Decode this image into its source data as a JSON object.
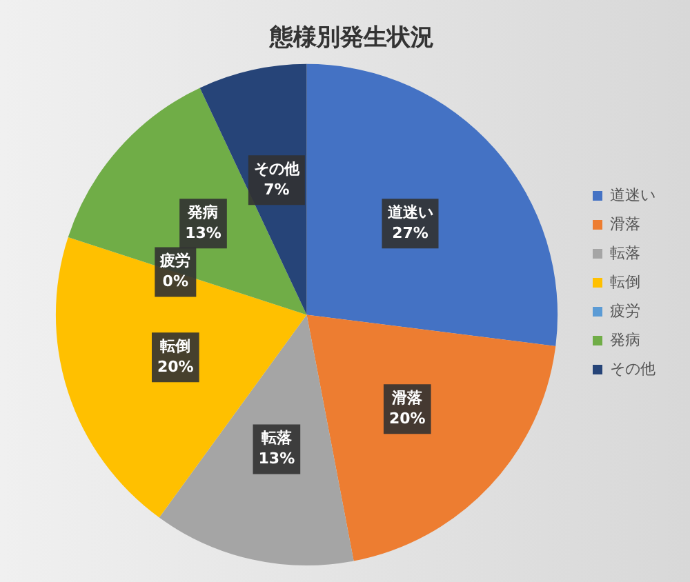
{
  "chart_data": {
    "type": "pie",
    "title": "態様別発生状況",
    "categories": [
      "道迷い",
      "滑落",
      "転落",
      "転倒",
      "疲労",
      "発病",
      "その他"
    ],
    "values": [
      27,
      20,
      13,
      20,
      0,
      13,
      7
    ],
    "value_labels": [
      "27%",
      "20%",
      "13%",
      "20%",
      "0%",
      "13%",
      "7%"
    ],
    "colors": [
      "#4472c4",
      "#ed7d31",
      "#a5a5a5",
      "#ffc000",
      "#5b9bd5",
      "#70ad47",
      "#264478"
    ],
    "legend": "right"
  }
}
